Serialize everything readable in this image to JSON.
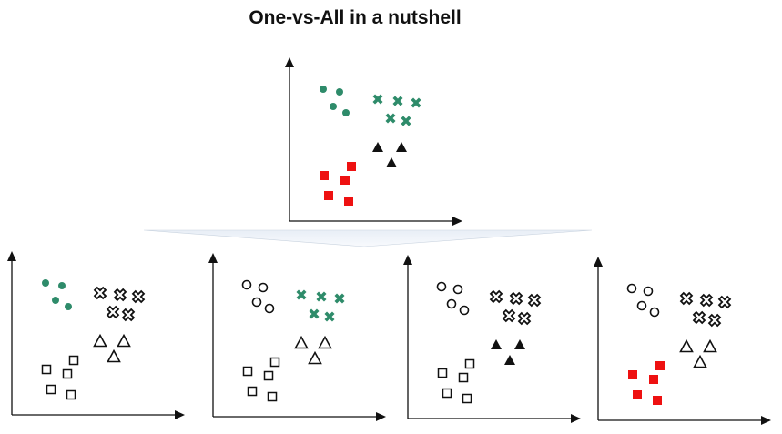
{
  "title": "One-vs-All in a nutshell",
  "colors": {
    "green": "#2e8b6a",
    "red": "#ee1111",
    "black": "#111111",
    "funnel": "#dde6f2"
  },
  "classes": [
    "dots",
    "crosses",
    "triangles",
    "squares"
  ],
  "panels": [
    {
      "name": "original-panel",
      "style": {
        "dots": "green-dot",
        "crosses": "green-cross",
        "triangles": "black-filled",
        "squares": "red-filled"
      }
    },
    {
      "name": "panel-dots-vs-all",
      "style": {
        "dots": "green-dot",
        "crosses": "black-cross",
        "triangles": "black-outline",
        "squares": "black-outline"
      }
    },
    {
      "name": "panel-crosses-vs-all",
      "style": {
        "dots": "black-circle",
        "crosses": "green-cross",
        "triangles": "black-outline",
        "squares": "black-outline"
      }
    },
    {
      "name": "panel-triangles-vs-all",
      "style": {
        "dots": "black-circle",
        "crosses": "black-cross",
        "triangles": "black-filled",
        "squares": "black-outline"
      }
    },
    {
      "name": "panel-squares-vs-all",
      "style": {
        "dots": "black-circle",
        "crosses": "black-cross",
        "triangles": "black-outline",
        "squares": "red-filled"
      }
    }
  ]
}
